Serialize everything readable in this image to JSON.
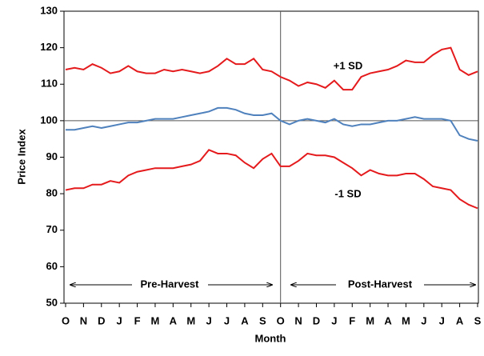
{
  "chart_data": {
    "type": "line",
    "y_label": "Price Index",
    "x_label": "Month",
    "annotations": [
      "+1 SD",
      "-1 SD",
      "Pre-Harvest",
      "Post-Harvest"
    ],
    "x": [
      0,
      0.5,
      1,
      1.5,
      2,
      2.5,
      3,
      3.5,
      4,
      4.5,
      5,
      5.5,
      6,
      6.5,
      7,
      7.5,
      8,
      8.5,
      9,
      9.5,
      10,
      10.5,
      11,
      11.5,
      12,
      12.5,
      13,
      13.5,
      14,
      14.5,
      15,
      15.5,
      16,
      16.5,
      17,
      17.5,
      18,
      18.5,
      19,
      19.5,
      20,
      20.5,
      21,
      21.5,
      22,
      22.5,
      23
    ],
    "xlim": [
      0,
      23
    ],
    "xticks": [
      {
        "value": 0,
        "label": "O"
      },
      {
        "value": 1,
        "label": "N"
      },
      {
        "value": 2,
        "label": "D"
      },
      {
        "value": 3,
        "label": "J"
      },
      {
        "value": 4,
        "label": "F"
      },
      {
        "value": 5,
        "label": "M"
      },
      {
        "value": 6,
        "label": "A"
      },
      {
        "value": 7,
        "label": "M"
      },
      {
        "value": 8,
        "label": "J"
      },
      {
        "value": 9,
        "label": "J"
      },
      {
        "value": 10,
        "label": "A"
      },
      {
        "value": 11,
        "label": "S"
      },
      {
        "value": 12,
        "label": "O"
      },
      {
        "value": 13,
        "label": "N"
      },
      {
        "value": 14,
        "label": "D"
      },
      {
        "value": 15,
        "label": "J"
      },
      {
        "value": 16,
        "label": "F"
      },
      {
        "value": 17,
        "label": "M"
      },
      {
        "value": 18,
        "label": "A"
      },
      {
        "value": 19,
        "label": "M"
      },
      {
        "value": 20,
        "label": "J"
      },
      {
        "value": 21,
        "label": "J"
      },
      {
        "value": 22,
        "label": "A"
      },
      {
        "value": 23,
        "label": "S"
      }
    ],
    "ylim": [
      50,
      130
    ],
    "yticks": [
      50,
      60,
      70,
      80,
      90,
      100,
      110,
      120,
      130
    ],
    "hline": 100,
    "vline": 12,
    "series": [
      {
        "color": "#e41a1c",
        "values": [
          114,
          114.5,
          114,
          115.5,
          114.5,
          113,
          113.5,
          115,
          113.5,
          113,
          113,
          114,
          113.5,
          114,
          113.5,
          113,
          113.5,
          115,
          117,
          115.5,
          115.5,
          117,
          114,
          113.5,
          112,
          111,
          109.5,
          110.5,
          110,
          109,
          111,
          108.5,
          108.5,
          112,
          113,
          113.5,
          114,
          115,
          116.5,
          116,
          116,
          118,
          119.5,
          120,
          114,
          112.5,
          113.5
        ]
      },
      {
        "color": "#4f81bd",
        "values": [
          97.5,
          97.5,
          98,
          98.5,
          98,
          98.5,
          99,
          99.5,
          99.5,
          100,
          100.5,
          100.5,
          100.5,
          101,
          101.5,
          102,
          102.5,
          103.5,
          103.5,
          103,
          102,
          101.5,
          101.5,
          102,
          100,
          99,
          100,
          100.5,
          100,
          99.5,
          100.5,
          99,
          98.5,
          99,
          99,
          99.5,
          100,
          100,
          100.5,
          101,
          100.5,
          100.5,
          100.5,
          100,
          96,
          95,
          94.5
        ]
      },
      {
        "color": "#e41a1c",
        "values": [
          81,
          81.5,
          81.5,
          82.5,
          82.5,
          83.5,
          83,
          85,
          86,
          86.5,
          87,
          87,
          87,
          87.5,
          88,
          89,
          92,
          91,
          91,
          90.5,
          88.5,
          87,
          89.5,
          91,
          87.5,
          87.5,
          89,
          91,
          90.5,
          90.5,
          90,
          88.5,
          87,
          85,
          86.5,
          85.5,
          85,
          85,
          85.5,
          85.5,
          84,
          82,
          81.5,
          81,
          78.5,
          77,
          76
        ]
      }
    ]
  }
}
